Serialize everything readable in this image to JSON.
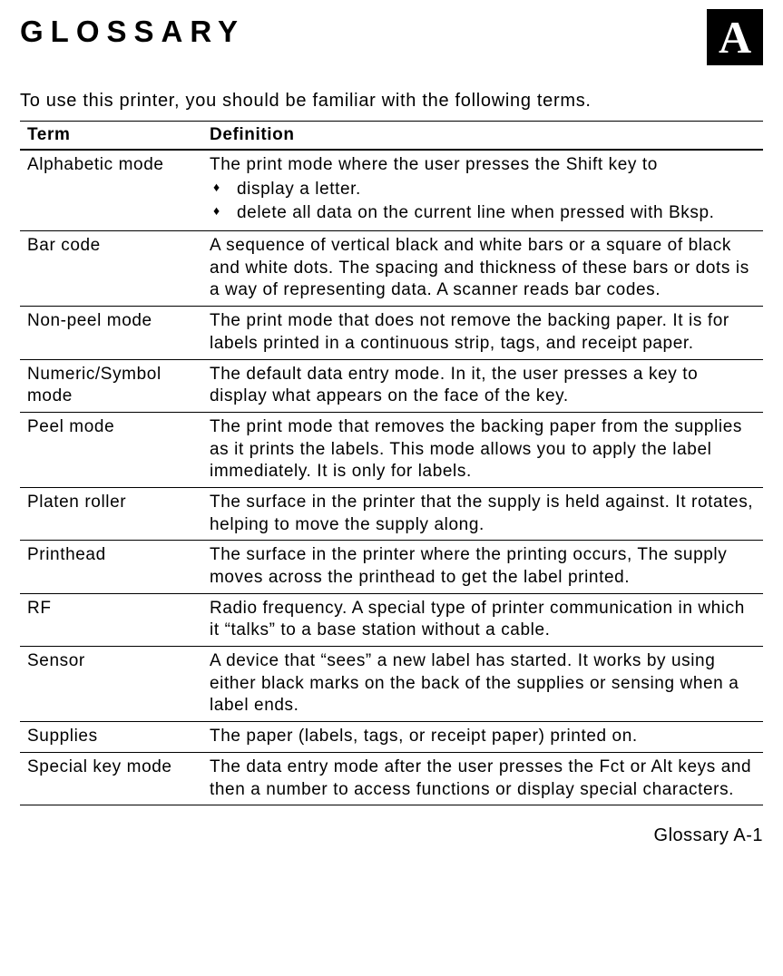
{
  "header": {
    "title": "GLOSSARY",
    "badge_letter": "A"
  },
  "intro": "To use this printer, you should be familiar with the following terms.",
  "table": {
    "col_term": "Term",
    "col_def": "Definition"
  },
  "rows": {
    "alphabetic": {
      "term": "Alphabetic mode",
      "lead": "The print mode where the user presses the Shift key to",
      "bullet1": "display a letter.",
      "bullet2": "delete all data on the current line when pressed with Bksp."
    },
    "barcode": {
      "term": "Bar code",
      "def": "A sequence of vertical black and white bars or a square of black and white dots.  The spacing and thickness of these bars or dots is a way of representing data.  A scanner reads bar codes."
    },
    "nonpeel": {
      "term": "Non-peel mode",
      "def": "The print mode that does not remove the backing paper.  It is for labels printed in a continuous strip, tags, and receipt paper."
    },
    "numeric": {
      "term": "Numeric/Symbol mode",
      "def": "The default data entry mode.  In it, the user presses a key to display what appears on the face of the key."
    },
    "peel": {
      "term": "Peel mode",
      "def": "The print mode that removes the backing paper from the supplies as it prints the labels.  This mode allows you to apply the label immediately.  It is only for labels."
    },
    "platen": {
      "term": "Platen roller",
      "def": "The surface in the printer that the supply is held against.  It rotates, helping to move the supply along."
    },
    "printhead": {
      "term": "Printhead",
      "def": "The surface in the printer where the printing occurs,  The supply moves across the printhead to get the label printed."
    },
    "rf": {
      "term": "RF",
      "def": "Radio frequency.  A special type of printer communication in which it “talks” to a base station without a cable."
    },
    "sensor": {
      "term": "Sensor",
      "def": "A device that “sees” a new label has started.  It works by using either black marks on the back of the supplies or sensing when a label ends."
    },
    "supplies": {
      "term": "Supplies",
      "def": "The paper (labels, tags, or receipt paper) printed on."
    },
    "special": {
      "term": "Special key mode",
      "def": "The data entry mode after the user presses the Fct or Alt keys and then a number to access functions or display special characters."
    }
  },
  "footer": "Glossary  A-1"
}
